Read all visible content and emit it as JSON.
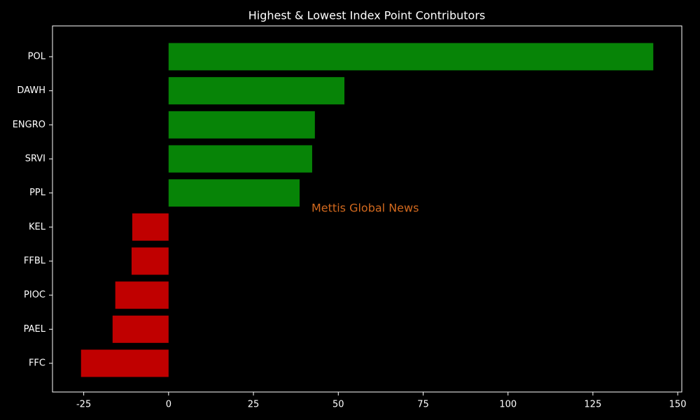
{
  "chart_data": {
    "type": "barh",
    "title": "Highest & Lowest Index Point Contributors",
    "categories": [
      "POL",
      "DAWH",
      "ENGRO",
      "SRVI",
      "PPL",
      "KEL",
      "FFBL",
      "PIOC",
      "PAEL",
      "FFC"
    ],
    "values": [
      142.8,
      51.8,
      43.1,
      42.3,
      38.6,
      -10.7,
      -10.9,
      -15.7,
      -16.5,
      -25.8
    ],
    "colors": [
      "#078407",
      "#078407",
      "#078407",
      "#078407",
      "#078407",
      "#c00000",
      "#c00000",
      "#c00000",
      "#c00000",
      "#c00000"
    ],
    "xlim": [
      -34.2,
      151.2
    ],
    "xticks": [
      -25,
      0,
      25,
      50,
      75,
      100,
      125,
      150
    ],
    "annotation": "Mettis Global News"
  }
}
